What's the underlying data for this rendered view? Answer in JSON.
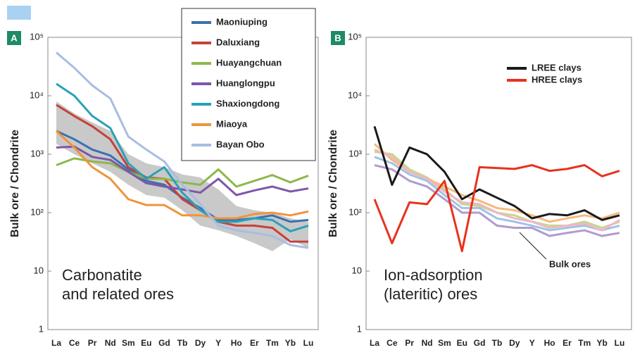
{
  "chart_data": [
    {
      "type": "line",
      "panel_label": "A",
      "ylabel": "Bulk ore / Chondrite",
      "annotation": [
        "Carbonatite",
        "and related ores"
      ],
      "categories": [
        "La",
        "Ce",
        "Pr",
        "Nd",
        "Sm",
        "Eu",
        "Gd",
        "Tb",
        "Dy",
        "Y",
        "Ho",
        "Er",
        "Tm",
        "Yb",
        "Lu"
      ],
      "log_scale": true,
      "ylim": [
        1,
        100000
      ],
      "yticks": [
        1,
        10,
        {
          "value": 100,
          "label": "10²"
        },
        {
          "value": 1000,
          "label": "10³"
        },
        {
          "value": 10000,
          "label": "10⁴"
        },
        {
          "value": 100000,
          "label": "10⁵"
        }
      ],
      "legend": "top-right-outside",
      "shaded_range": {
        "color": "#c9c9c9",
        "high": [
          8000,
          5000,
          3500,
          2500,
          1000,
          700,
          600,
          450,
          400,
          250,
          130,
          110,
          100,
          80,
          70
        ],
        "low": [
          1500,
          1000,
          700,
          500,
          300,
          200,
          180,
          110,
          60,
          50,
          40,
          30,
          22,
          35,
          25
        ]
      },
      "series": [
        {
          "name": "Maoniuping",
          "color": "#3d6fb0",
          "values": [
            2500,
            1800,
            1200,
            950,
            550,
            350,
            300,
            180,
            120,
            75,
            75,
            80,
            90,
            70,
            75
          ]
        },
        {
          "name": "Daluxiang",
          "color": "#c6413a",
          "values": [
            7000,
            4500,
            3000,
            1800,
            600,
            400,
            380,
            170,
            110,
            70,
            60,
            60,
            55,
            32,
            32
          ]
        },
        {
          "name": "Huayangchuan",
          "color": "#8db84a",
          "values": [
            650,
            850,
            750,
            700,
            500,
            380,
            380,
            330,
            300,
            550,
            280,
            350,
            440,
            330,
            430
          ]
        },
        {
          "name": "Huanglongpu",
          "color": "#7d57a8",
          "values": [
            1300,
            1350,
            900,
            800,
            500,
            320,
            280,
            250,
            220,
            380,
            200,
            240,
            280,
            230,
            260
          ]
        },
        {
          "name": "Shaxiongdong",
          "color": "#2aa1b8",
          "values": [
            16000,
            10000,
            4500,
            2800,
            700,
            380,
            600,
            220,
            110,
            70,
            70,
            80,
            75,
            48,
            60
          ]
        },
        {
          "name": "Miaoya",
          "color": "#f0943a",
          "values": [
            2500,
            1300,
            600,
            380,
            170,
            135,
            135,
            90,
            90,
            80,
            80,
            95,
            100,
            90,
            105
          ]
        },
        {
          "name": "Bayan Obo",
          "color": "#a9bde3",
          "values": [
            55000,
            30000,
            15000,
            9000,
            2000,
            1200,
            750,
            300,
            140,
            60,
            50,
            45,
            40,
            28,
            25
          ]
        }
      ]
    },
    {
      "type": "line",
      "panel_label": "B",
      "ylabel": "Bulk ore / Chondrite",
      "annotation": [
        "Ion-adsorption",
        "(lateritic) ores"
      ],
      "categories": [
        "La",
        "Ce",
        "Pr",
        "Nd",
        "Sm",
        "Eu",
        "Gd",
        "Tb",
        "Dy",
        "Y",
        "Ho",
        "Er",
        "Tm",
        "Yb",
        "Lu"
      ],
      "log_scale": true,
      "ylim": [
        1,
        100000
      ],
      "yticks": [
        1,
        10,
        {
          "value": 100,
          "label": "10²"
        },
        {
          "value": 1000,
          "label": "10³"
        },
        {
          "value": 10000,
          "label": "10⁴"
        },
        {
          "value": 100000,
          "label": "10⁵"
        }
      ],
      "legend": "top-right",
      "bulk_ores": {
        "label": "Bulk ores",
        "lines": [
          {
            "color": "#c3d98a",
            "values": [
              1100,
              1000,
              550,
              400,
              250,
              140,
              130,
              100,
              90,
              70,
              60,
              60,
              70,
              55,
              70
            ]
          },
          {
            "color": "#f6b97a",
            "values": [
              1500,
              800,
              500,
              380,
              280,
              200,
              160,
              120,
              110,
              90,
              70,
              80,
              90,
              80,
              100
            ]
          },
          {
            "color": "#b09ccf",
            "values": [
              650,
              550,
              350,
              280,
              170,
              100,
              100,
              60,
              55,
              55,
              40,
              45,
              50,
              40,
              45
            ]
          },
          {
            "color": "#9fc3e6",
            "values": [
              900,
              700,
              450,
              350,
              200,
              120,
              120,
              80,
              70,
              60,
              50,
              55,
              60,
              50,
              60
            ]
          },
          {
            "color": "#f1b6c6",
            "values": [
              1200,
              900,
              500,
              380,
              230,
              150,
              140,
              100,
              80,
              70,
              55,
              60,
              65,
              50,
              75
            ]
          }
        ]
      },
      "series": [
        {
          "name": "LREE clays",
          "color": "#1a1a1a",
          "values": [
            3000,
            300,
            1300,
            1000,
            500,
            170,
            250,
            180,
            130,
            80,
            95,
            90,
            110,
            75,
            90
          ]
        },
        {
          "name": "HREE clays",
          "color": "#e8321e",
          "values": [
            170,
            30,
            150,
            140,
            350,
            22,
            600,
            580,
            560,
            650,
            520,
            560,
            650,
            420,
            520
          ]
        }
      ]
    }
  ]
}
